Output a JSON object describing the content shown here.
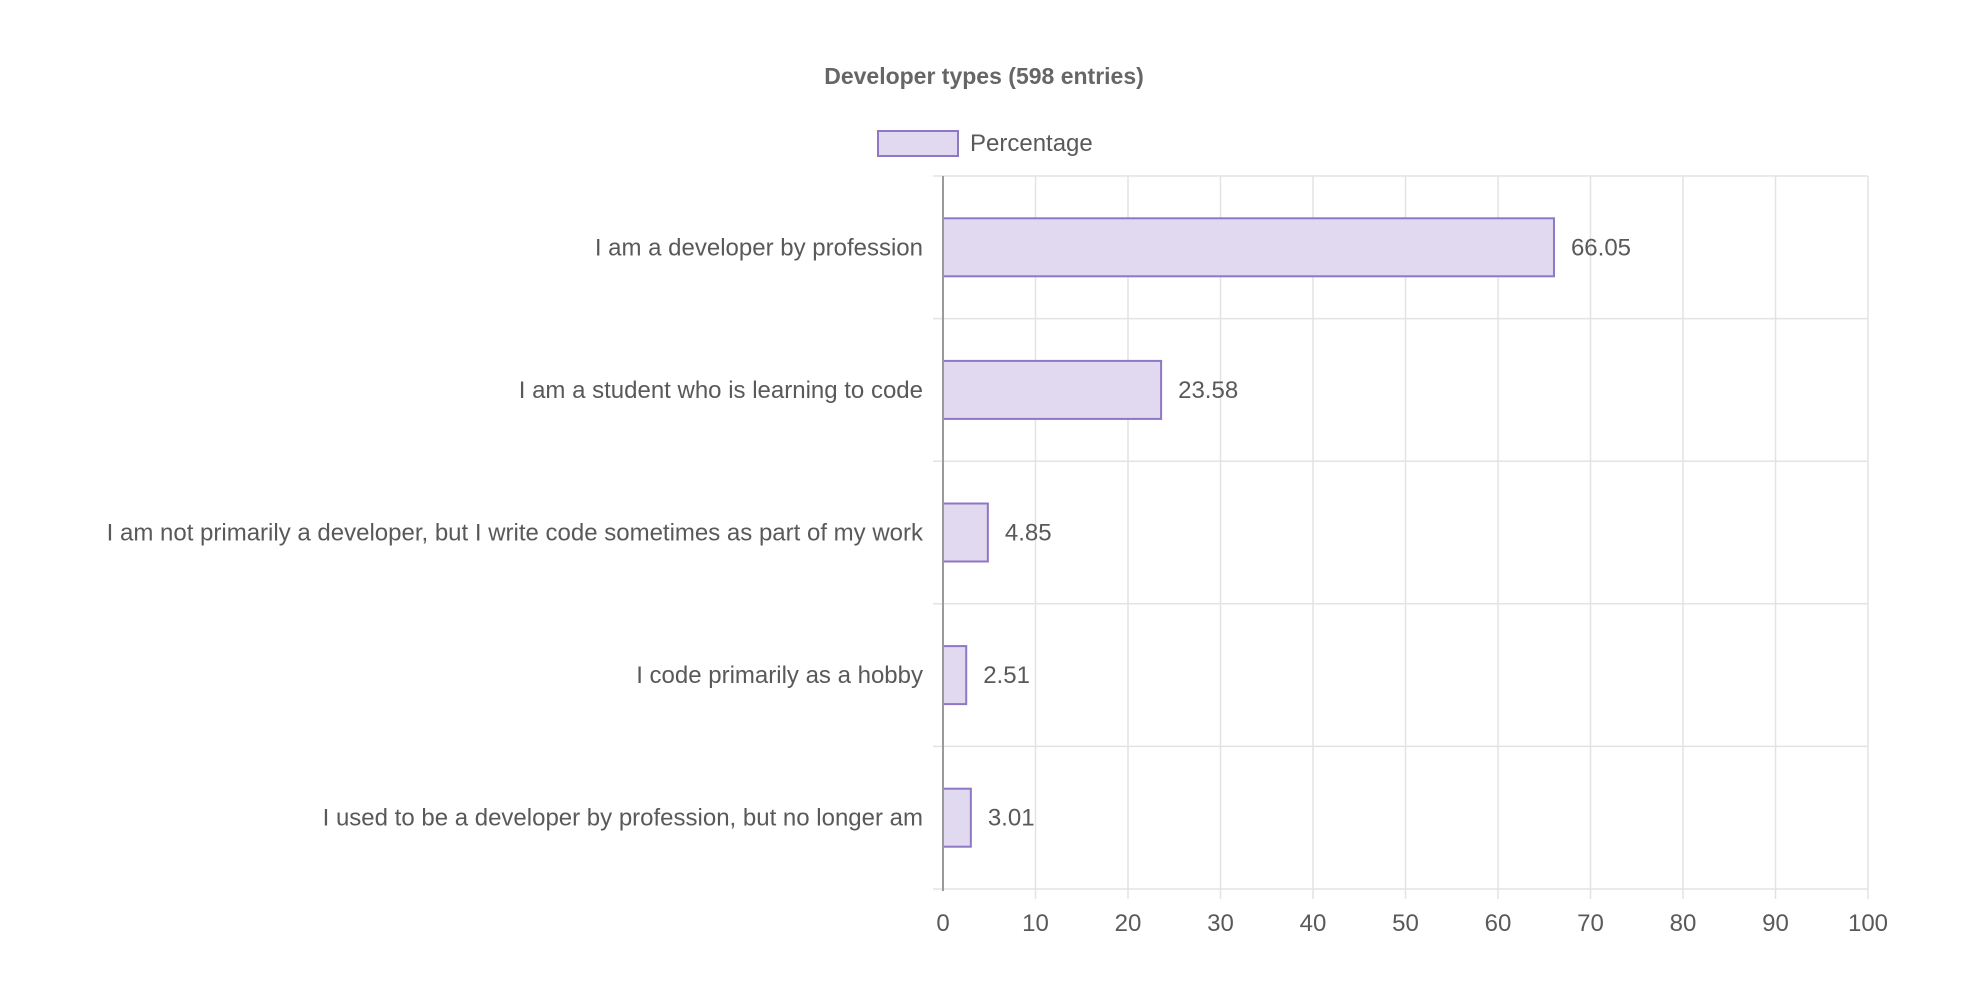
{
  "chart_data": {
    "type": "bar",
    "orientation": "horizontal",
    "title": "Developer types (598 entries)",
    "categories": [
      "I am a developer by profession",
      "I am a student who is learning to code",
      "I am not primarily a developer, but I write code sometimes as part of my work",
      "I code primarily as a hobby",
      "I used to be a developer by profession, but no longer am"
    ],
    "series": [
      {
        "name": "Percentage",
        "values": [
          66.05,
          23.58,
          4.85,
          2.51,
          3.01
        ],
        "value_labels": [
          "66.05",
          "23.58",
          "4.85",
          "2.51",
          "3.01"
        ],
        "fill_color": "#e1d9ef",
        "border_color": "#8e77c4"
      }
    ],
    "xlim": [
      0,
      100
    ],
    "x_ticks": [
      0,
      10,
      20,
      30,
      40,
      50,
      60,
      70,
      80,
      90,
      100
    ],
    "xlabel": "",
    "ylabel": "",
    "grid": true,
    "legend_position": "top-center",
    "colors": {
      "grid": "#e3e3e3",
      "axis": "#9a9a9a",
      "text": "#595959",
      "title": "#666666"
    }
  }
}
